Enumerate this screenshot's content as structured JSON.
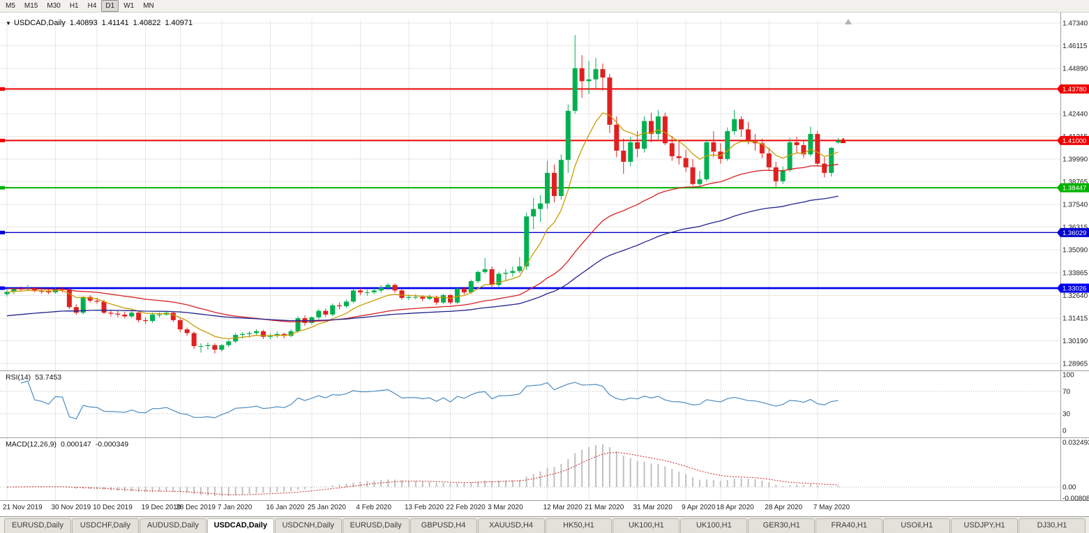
{
  "icons": {
    "symbol_dropdown": "▼",
    "chart_shift": "▲"
  },
  "toolbar": {
    "timeframes": [
      "M5",
      "M15",
      "M30",
      "H1",
      "H4",
      "D1",
      "W1",
      "MN"
    ],
    "active": "D1"
  },
  "chart_header": {
    "symbol_period": "USDCAD,Daily",
    "open": "1.40893",
    "high": "1.41141",
    "low": "1.40822",
    "close": "1.40971"
  },
  "chart_data": {
    "type": "candlestick",
    "symbol": "USDCAD",
    "period": "Daily",
    "y_range": [
      1.2862,
      1.4753
    ],
    "price_axis_labels": [
      "1.47340",
      "1.46115",
      "1.44890",
      "1.43665",
      "1.42440",
      "1.41215",
      "1.39990",
      "1.38765",
      "1.37540",
      "1.36315",
      "1.35090",
      "1.33865",
      "1.32640",
      "1.31415",
      "1.30190",
      "1.28965"
    ],
    "date_axis_labels": [
      {
        "text": "21 Nov 2019",
        "i": 0
      },
      {
        "text": "30 Nov 2019",
        "i": 7
      },
      {
        "text": "10 Dec 2019",
        "i": 13
      },
      {
        "text": "19 Dec 2019",
        "i": 20
      },
      {
        "text": "28 Dec 2019",
        "i": 25
      },
      {
        "text": "7 Jan 2020",
        "i": 31
      },
      {
        "text": "16 Jan 2020",
        "i": 38
      },
      {
        "text": "25 Jan 2020",
        "i": 44
      },
      {
        "text": "4 Feb 2020",
        "i": 51
      },
      {
        "text": "13 Feb 2020",
        "i": 58
      },
      {
        "text": "22 Feb 2020",
        "i": 64
      },
      {
        "text": "3 Mar 2020",
        "i": 70
      },
      {
        "text": "12 Mar 2020",
        "i": 78
      },
      {
        "text": "21 Mar 2020",
        "i": 84
      },
      {
        "text": "31 Mar 2020",
        "i": 91
      },
      {
        "text": "9 Apr 2020",
        "i": 98
      },
      {
        "text": "18 Apr 2020",
        "i": 103
      },
      {
        "text": "28 Apr 2020",
        "i": 110
      },
      {
        "text": "7 May 2020",
        "i": 117
      }
    ],
    "horizontal_lines": [
      {
        "price": 1.4378,
        "label": "1.43780",
        "color": "#EE0000",
        "width": 2
      },
      {
        "price": 1.41,
        "label": "1.41000",
        "color": "#EE0000",
        "width": 2
      },
      {
        "price": 1.38447,
        "label": "1.38447",
        "color": "#00B200",
        "width": 2
      },
      {
        "price": 1.36029,
        "label": "1.36029",
        "color": "#0000CC",
        "width": 1.4
      },
      {
        "price": 1.33026,
        "label": "1.33026",
        "color": "#0000EE",
        "width": 2.8
      }
    ],
    "moving_averages": [
      {
        "period": 5,
        "color": "#C89B00",
        "seed": 1.328
      },
      {
        "period": 21,
        "color": "#D42020",
        "seed": 1.33
      },
      {
        "period": 40,
        "color": "#23238E",
        "seed": 1.315
      }
    ],
    "candle_colors": {
      "bull": "#00B050",
      "bear": "#E02020"
    },
    "current_price_marker": {
      "price": 1.40971,
      "color": "#EE0000"
    },
    "indicators": {
      "rsi": {
        "name": "RSI(14)",
        "period": 14,
        "value": "53.7453",
        "color": "#4C8CBF",
        "scale_labels": [
          {
            "text": "100",
            "v": 100
          },
          {
            "text": "70",
            "v": 70
          },
          {
            "text": "30",
            "v": 30
          },
          {
            "text": "0",
            "v": 0
          }
        ],
        "levels": [
          70,
          30
        ]
      },
      "macd": {
        "name": "MACD(12,26,9)",
        "fast": 12,
        "slow": 26,
        "signal": 9,
        "main_value": "0.000147",
        "signal_value": "-0.000349",
        "hist_color": "#C0C0C0",
        "signal_color": "#CC2020",
        "scale": [
          {
            "text": "0.032493",
            "v": 0.032493
          },
          {
            "text": "0.00",
            "v": 0
          },
          {
            "text": "-0.00808",
            "v": -0.00808
          }
        ]
      }
    },
    "ohlc": [
      [
        1.327,
        1.3298,
        1.3258,
        1.3283
      ],
      [
        1.3283,
        1.331,
        1.327,
        1.33
      ],
      [
        1.33,
        1.3312,
        1.3285,
        1.3297
      ],
      [
        1.3297,
        1.332,
        1.329,
        1.3303
      ],
      [
        1.3303,
        1.331,
        1.328,
        1.3287
      ],
      [
        1.3287,
        1.3298,
        1.3272,
        1.3285
      ],
      [
        1.3285,
        1.33,
        1.327,
        1.328
      ],
      [
        1.328,
        1.3305,
        1.3272,
        1.3297
      ],
      [
        1.3297,
        1.331,
        1.328,
        1.3296
      ],
      [
        1.3296,
        1.3302,
        1.319,
        1.32
      ],
      [
        1.32,
        1.3215,
        1.3158,
        1.317
      ],
      [
        1.317,
        1.326,
        1.316,
        1.3255
      ],
      [
        1.3255,
        1.3265,
        1.3225,
        1.3235
      ],
      [
        1.3235,
        1.325,
        1.3218,
        1.323
      ],
      [
        1.323,
        1.324,
        1.3162,
        1.317
      ],
      [
        1.317,
        1.3185,
        1.315,
        1.3165
      ],
      [
        1.3165,
        1.318,
        1.3145,
        1.316
      ],
      [
        1.316,
        1.3175,
        1.314,
        1.315
      ],
      [
        1.315,
        1.3186,
        1.3142,
        1.317
      ],
      [
        1.317,
        1.3176,
        1.3118,
        1.313
      ],
      [
        1.313,
        1.3145,
        1.311,
        1.3125
      ],
      [
        1.3125,
        1.317,
        1.3115,
        1.316
      ],
      [
        1.316,
        1.3172,
        1.3145,
        1.316
      ],
      [
        1.316,
        1.318,
        1.3152,
        1.317
      ],
      [
        1.317,
        1.3175,
        1.312,
        1.313
      ],
      [
        1.313,
        1.3138,
        1.3065,
        1.308
      ],
      [
        1.308,
        1.309,
        1.3045,
        1.306
      ],
      [
        1.306,
        1.3068,
        1.2975,
        1.299
      ],
      [
        1.299,
        1.3005,
        1.2955,
        1.299
      ],
      [
        1.299,
        1.301,
        1.297,
        1.2995
      ],
      [
        1.2995,
        1.3005,
        1.295,
        1.297
      ],
      [
        1.297,
        1.3,
        1.296,
        1.2995
      ],
      [
        1.2995,
        1.3025,
        1.2985,
        1.3015
      ],
      [
        1.3015,
        1.306,
        1.3005,
        1.305
      ],
      [
        1.305,
        1.3065,
        1.303,
        1.3055
      ],
      [
        1.3055,
        1.307,
        1.3035,
        1.306
      ],
      [
        1.306,
        1.308,
        1.3045,
        1.307
      ],
      [
        1.307,
        1.3078,
        1.3028,
        1.304
      ],
      [
        1.304,
        1.3058,
        1.3025,
        1.3045
      ],
      [
        1.3045,
        1.3068,
        1.3035,
        1.3055
      ],
      [
        1.3055,
        1.3062,
        1.3032,
        1.3045
      ],
      [
        1.3045,
        1.308,
        1.3038,
        1.307
      ],
      [
        1.307,
        1.315,
        1.3062,
        1.314
      ],
      [
        1.314,
        1.3155,
        1.31,
        1.3115
      ],
      [
        1.3115,
        1.3152,
        1.3105,
        1.3145
      ],
      [
        1.3145,
        1.319,
        1.3135,
        1.318
      ],
      [
        1.318,
        1.3192,
        1.3148,
        1.316
      ],
      [
        1.316,
        1.322,
        1.3152,
        1.321
      ],
      [
        1.321,
        1.3225,
        1.3188,
        1.3205
      ],
      [
        1.3205,
        1.3242,
        1.3195,
        1.323
      ],
      [
        1.323,
        1.33,
        1.3222,
        1.329
      ],
      [
        1.329,
        1.3305,
        1.3265,
        1.328
      ],
      [
        1.328,
        1.3295,
        1.3262,
        1.328
      ],
      [
        1.328,
        1.3302,
        1.327,
        1.329
      ],
      [
        1.329,
        1.3318,
        1.3278,
        1.3305
      ],
      [
        1.3305,
        1.333,
        1.3292,
        1.332
      ],
      [
        1.332,
        1.3328,
        1.3278,
        1.329
      ],
      [
        1.329,
        1.3298,
        1.324,
        1.325
      ],
      [
        1.325,
        1.3268,
        1.3238,
        1.3255
      ],
      [
        1.3255,
        1.327,
        1.3242,
        1.3255
      ],
      [
        1.3255,
        1.3265,
        1.3232,
        1.3245
      ],
      [
        1.3245,
        1.3268,
        1.3238,
        1.3255
      ],
      [
        1.3255,
        1.3262,
        1.3212,
        1.3225
      ],
      [
        1.3225,
        1.3272,
        1.3218,
        1.3265
      ],
      [
        1.3265,
        1.327,
        1.3215,
        1.3225
      ],
      [
        1.3225,
        1.3305,
        1.3218,
        1.33
      ],
      [
        1.33,
        1.331,
        1.3268,
        1.328
      ],
      [
        1.328,
        1.3348,
        1.3272,
        1.334
      ],
      [
        1.334,
        1.3398,
        1.333,
        1.339
      ],
      [
        1.339,
        1.3465,
        1.338,
        1.3405
      ],
      [
        1.3405,
        1.342,
        1.331,
        1.332
      ],
      [
        1.332,
        1.3392,
        1.3305,
        1.338
      ],
      [
        1.338,
        1.3405,
        1.334,
        1.3385
      ],
      [
        1.3385,
        1.342,
        1.3365,
        1.3395
      ],
      [
        1.3395,
        1.347,
        1.3385,
        1.342
      ],
      [
        1.342,
        1.371,
        1.34,
        1.369
      ],
      [
        1.369,
        1.379,
        1.362,
        1.373
      ],
      [
        1.373,
        1.3805,
        1.366,
        1.376
      ],
      [
        1.376,
        1.399,
        1.373,
        1.3925
      ],
      [
        1.3925,
        1.397,
        1.3765,
        1.38
      ],
      [
        1.38,
        1.4025,
        1.378,
        1.3995
      ],
      [
        1.3995,
        1.4295,
        1.3925,
        1.426
      ],
      [
        1.426,
        1.4669,
        1.4245,
        1.449
      ],
      [
        1.449,
        1.456,
        1.433,
        1.442
      ],
      [
        1.442,
        1.453,
        1.435,
        1.443
      ],
      [
        1.443,
        1.4545,
        1.438,
        1.4485
      ],
      [
        1.4485,
        1.4515,
        1.437,
        1.444
      ],
      [
        1.444,
        1.446,
        1.414,
        1.4185
      ],
      [
        1.4185,
        1.423,
        1.401,
        1.4045
      ],
      [
        1.4045,
        1.411,
        1.392,
        1.3985
      ],
      [
        1.3985,
        1.412,
        1.396,
        1.409
      ],
      [
        1.409,
        1.415,
        1.401,
        1.4055
      ],
      [
        1.4055,
        1.423,
        1.4035,
        1.4205
      ],
      [
        1.4205,
        1.425,
        1.409,
        1.4135
      ],
      [
        1.4135,
        1.4265,
        1.4105,
        1.423
      ],
      [
        1.423,
        1.425,
        1.4075,
        1.4085
      ],
      [
        1.4085,
        1.4125,
        1.399,
        1.4015
      ],
      [
        1.4015,
        1.4095,
        1.397,
        1.4005
      ],
      [
        1.4005,
        1.405,
        1.393,
        1.3955
      ],
      [
        1.3955,
        1.4,
        1.3855,
        1.3865
      ],
      [
        1.3865,
        1.3935,
        1.385,
        1.389
      ],
      [
        1.389,
        1.4105,
        1.388,
        1.409
      ],
      [
        1.409,
        1.415,
        1.401,
        1.404
      ],
      [
        1.404,
        1.4085,
        1.3975,
        1.4
      ],
      [
        1.4,
        1.417,
        1.399,
        1.415
      ],
      [
        1.415,
        1.4265,
        1.413,
        1.4215
      ],
      [
        1.4215,
        1.423,
        1.412,
        1.416
      ],
      [
        1.416,
        1.42,
        1.408,
        1.4095
      ],
      [
        1.4095,
        1.4135,
        1.4045,
        1.4085
      ],
      [
        1.4085,
        1.411,
        1.4005,
        1.403
      ],
      [
        1.403,
        1.406,
        1.3935,
        1.3955
      ],
      [
        1.3955,
        1.3985,
        1.385,
        1.388
      ],
      [
        1.388,
        1.396,
        1.3865,
        1.394
      ],
      [
        1.394,
        1.4115,
        1.393,
        1.409
      ],
      [
        1.409,
        1.412,
        1.403,
        1.4075
      ],
      [
        1.4075,
        1.4095,
        1.4005,
        1.4025
      ],
      [
        1.4025,
        1.4175,
        1.4015,
        1.4135
      ],
      [
        1.4135,
        1.415,
        1.396,
        1.3975
      ],
      [
        1.3975,
        1.401,
        1.39,
        1.3925
      ],
      [
        1.3925,
        1.4065,
        1.3905,
        1.406
      ],
      [
        1.40893,
        1.41141,
        1.40822,
        1.40971
      ]
    ]
  },
  "tabbar": {
    "active_index": 3,
    "tabs": [
      "EURUSD,Daily",
      "USDCHF,Daily",
      "AUDUSD,Daily",
      "USDCAD,Daily",
      "USDCNH,Daily",
      "EURUSD,Daily",
      "GBPUSD,H4",
      "XAUUSD,H4",
      "HK50,H1",
      "UK100,H1",
      "UK100,H1",
      "GER30,H1",
      "FRA40,H1",
      "USOil,H1",
      "USDJPY,H1",
      "DJ30,H1"
    ]
  }
}
